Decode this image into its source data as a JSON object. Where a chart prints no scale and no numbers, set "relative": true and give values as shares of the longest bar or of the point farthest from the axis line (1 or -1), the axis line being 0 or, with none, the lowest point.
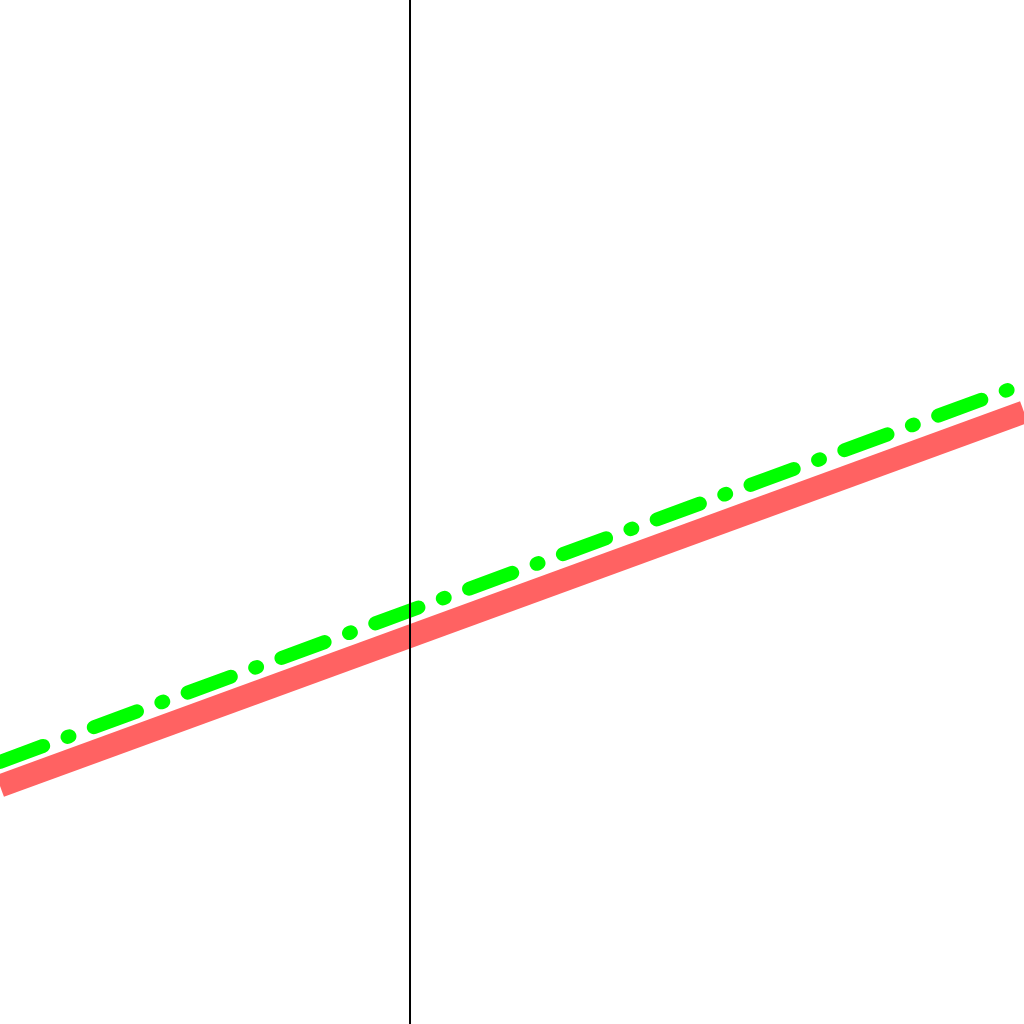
{
  "chart_data": {
    "type": "line",
    "relative": true,
    "categories": [
      null,
      null
    ],
    "series": [
      {
        "color": "#ff6262",
        "line_style": "solid",
        "values": [
          0,
          0.93
        ]
      },
      {
        "color": "#00ff00",
        "line_style": "dashed",
        "values": [
          0.06,
          1
        ]
      }
    ]
  }
}
